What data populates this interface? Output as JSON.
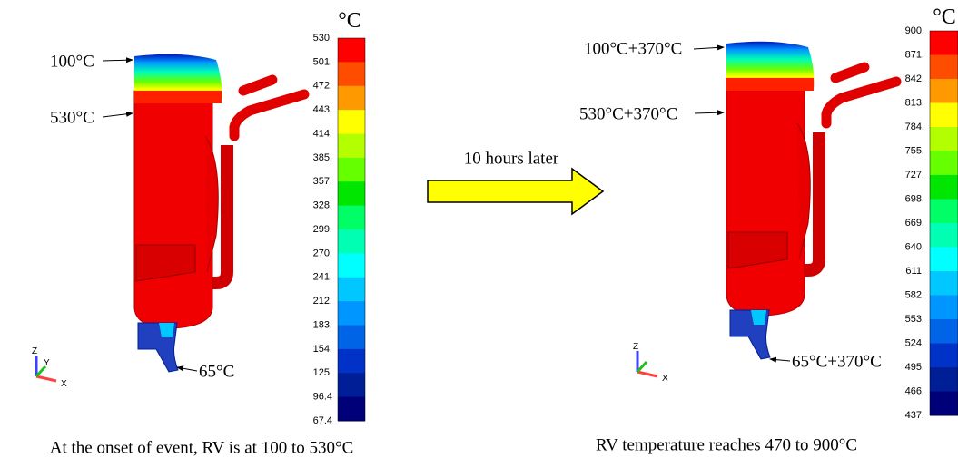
{
  "left": {
    "unit": "°C",
    "labels": [
      "530.",
      "501.",
      "472.",
      "443.",
      "414.",
      "385.",
      "357.",
      "328.",
      "299.",
      "270.",
      "241.",
      "212.",
      "183.",
      "154.",
      "125.",
      "96.4",
      "67.4"
    ],
    "annotations": [
      "100°C",
      "530°C",
      "65°C"
    ],
    "caption": "At the onset of event, RV is at 100 to 530°C"
  },
  "middle": {
    "label": "10 hours later"
  },
  "right": {
    "unit": "°C",
    "labels": [
      "900.",
      "871.",
      "842.",
      "813.",
      "784.",
      "755.",
      "727.",
      "698.",
      "669.",
      "640.",
      "611.",
      "582.",
      "553.",
      "524.",
      "495.",
      "466.",
      "437."
    ],
    "annotations": [
      "100°C+370°C",
      "530°C+370°C",
      "65°C+370°C"
    ],
    "caption": "RV temperature reaches 470 to 900°C"
  },
  "colorbar_colors": [
    "#ff0000",
    "#ff4d00",
    "#ff9900",
    "#ffff00",
    "#b3ff00",
    "#66ff00",
    "#00e600",
    "#00ff66",
    "#00ffb3",
    "#00ffff",
    "#00c8ff",
    "#0096ff",
    "#0064e6",
    "#0032c8",
    "#001e96",
    "#000078"
  ],
  "triad": [
    "Z",
    "Y",
    "X"
  ]
}
